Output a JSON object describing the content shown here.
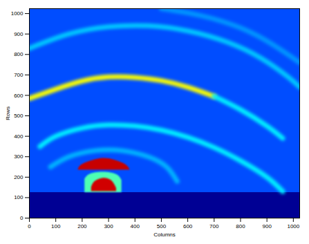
{
  "chart_data": {
    "type": "heatmap",
    "xlabel": "Columns",
    "ylabel": "Rows",
    "xlim": [
      0,
      1024
    ],
    "ylim": [
      0,
      1024
    ],
    "xticks": [
      0,
      100,
      200,
      300,
      400,
      500,
      600,
      700,
      800,
      900,
      1000
    ],
    "yticks": [
      0,
      100,
      200,
      300,
      400,
      500,
      600,
      700,
      800,
      900,
      1000
    ],
    "color_range": [
      0,
      1
    ],
    "regions": [
      {
        "x1": 0,
        "x2": 1024,
        "y1": 125,
        "y2": 1024,
        "value": 0.2
      },
      {
        "x1": 0,
        "x2": 1024,
        "y1": 0,
        "y2": 125,
        "value": 0.02
      }
    ],
    "rings": [
      {
        "value": 0.27,
        "points": [
          [
            500,
            1024
          ],
          [
            650,
            990
          ],
          [
            800,
            930
          ],
          [
            920,
            850
          ],
          [
            1024,
            760
          ]
        ]
      },
      {
        "value": 0.32,
        "points": [
          [
            0,
            830
          ],
          [
            150,
            900
          ],
          [
            300,
            935
          ],
          [
            450,
            940
          ],
          [
            600,
            915
          ],
          [
            750,
            860
          ],
          [
            880,
            780
          ],
          [
            980,
            690
          ],
          [
            1024,
            640
          ]
        ]
      },
      {
        "value": 0.62,
        "points": [
          [
            0,
            585
          ],
          [
            100,
            630
          ],
          [
            200,
            670
          ],
          [
            300,
            690
          ],
          [
            400,
            688
          ],
          [
            500,
            672
          ],
          [
            600,
            640
          ],
          [
            700,
            595
          ]
        ]
      },
      {
        "value": 0.36,
        "points": [
          [
            700,
            595
          ],
          [
            800,
            530
          ],
          [
            900,
            450
          ],
          [
            960,
            390
          ]
        ]
      },
      {
        "value": 0.36,
        "points": [
          [
            40,
            350
          ],
          [
            100,
            400
          ],
          [
            200,
            440
          ],
          [
            300,
            455
          ],
          [
            400,
            450
          ],
          [
            500,
            430
          ],
          [
            600,
            395
          ],
          [
            700,
            345
          ],
          [
            800,
            280
          ],
          [
            900,
            200
          ],
          [
            960,
            130
          ]
        ]
      },
      {
        "value": 0.3,
        "points": [
          [
            80,
            250
          ],
          [
            150,
            300
          ],
          [
            250,
            330
          ],
          [
            350,
            330
          ],
          [
            450,
            300
          ],
          [
            520,
            250
          ],
          [
            560,
            180
          ]
        ]
      }
    ],
    "patches": [
      {
        "value": 0.45,
        "points": [
          [
            210,
            125,
            190
          ],
          [
            230,
            125,
            215
          ],
          [
            280,
            125,
            225
          ],
          [
            330,
            125,
            213
          ],
          [
            350,
            125,
            185
          ]
        ]
      },
      {
        "value": 0.93,
        "points": [
          [
            185,
            235,
            240
          ],
          [
            200,
            235,
            262
          ],
          [
            240,
            235,
            282
          ],
          [
            280,
            235,
            292
          ],
          [
            320,
            235,
            285
          ],
          [
            360,
            235,
            265
          ],
          [
            380,
            235,
            240
          ]
        ]
      },
      {
        "value": 0.92,
        "points": [
          [
            235,
            130,
            150
          ],
          [
            245,
            130,
            175
          ],
          [
            265,
            130,
            190
          ],
          [
            285,
            130,
            195
          ],
          [
            305,
            130,
            188
          ],
          [
            320,
            130,
            170
          ],
          [
            330,
            130,
            145
          ]
        ]
      }
    ]
  }
}
